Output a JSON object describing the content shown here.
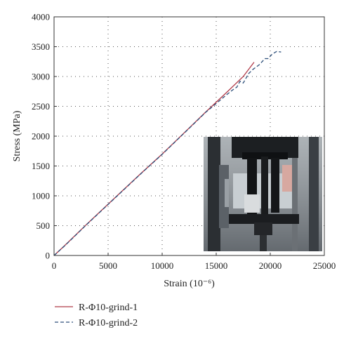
{
  "chart_data": {
    "type": "line",
    "title": "",
    "xlabel": "Strain (10⁻⁶)",
    "ylabel": "Stress (MPa)",
    "xlim": [
      0,
      25000
    ],
    "ylim": [
      0,
      4000
    ],
    "xticks": [
      0,
      5000,
      10000,
      15000,
      20000,
      25000
    ],
    "yticks": [
      0,
      500,
      1000,
      1500,
      2000,
      2500,
      3000,
      3500,
      4000
    ],
    "grid": true,
    "legend": "bottom-left, below plot",
    "series": [
      {
        "name": "R-Φ10-grind-1",
        "color": "#b03a48",
        "dash": "solid",
        "points": [
          [
            0,
            0
          ],
          [
            1000,
            170
          ],
          [
            3000,
            520
          ],
          [
            5000,
            860
          ],
          [
            8000,
            1370
          ],
          [
            10000,
            1700
          ],
          [
            12000,
            2050
          ],
          [
            14000,
            2400
          ],
          [
            16000,
            2740
          ],
          [
            17500,
            3000
          ],
          [
            18500,
            3240
          ]
        ]
      },
      {
        "name": "R-Φ10-grind-2",
        "color": "#2d4f7a",
        "dash": "dashed",
        "points": [
          [
            0,
            0
          ],
          [
            1000,
            165
          ],
          [
            3000,
            515
          ],
          [
            5000,
            855
          ],
          [
            8000,
            1365
          ],
          [
            10000,
            1695
          ],
          [
            12000,
            2045
          ],
          [
            14000,
            2395
          ],
          [
            16000,
            2700
          ],
          [
            16700,
            2800
          ],
          [
            16900,
            2820
          ],
          [
            17200,
            2920
          ],
          [
            17500,
            2890
          ],
          [
            18000,
            3050
          ],
          [
            18400,
            3120
          ],
          [
            19000,
            3200
          ],
          [
            19500,
            3300
          ],
          [
            19800,
            3300
          ],
          [
            20200,
            3380
          ],
          [
            20600,
            3420
          ],
          [
            21000,
            3410
          ]
        ]
      }
    ],
    "inset": "photo-of-tensile-test-machine"
  }
}
